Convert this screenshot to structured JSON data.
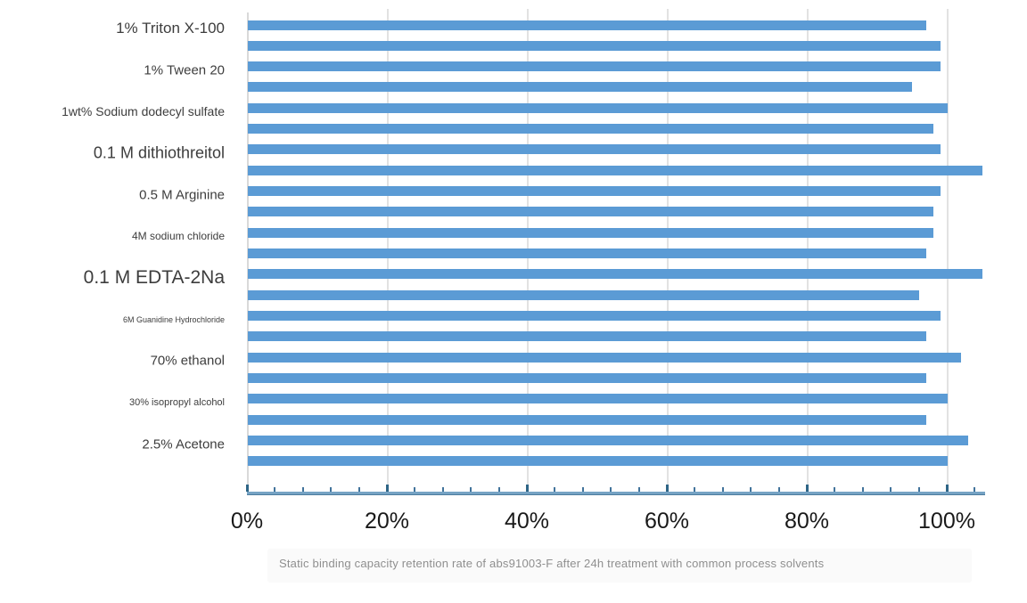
{
  "chart_data": {
    "type": "bar",
    "orientation": "horizontal",
    "title": "",
    "caption": "Static binding capacity retention rate of abs91003-F after 24h treatment with common process solvents",
    "categories": [
      "1% Triton X-100",
      "1% Tween 20",
      "1wt% Sodium dodecyl sulfate",
      "0.1 M dithiothreitol",
      "0.5 M Arginine",
      "4M sodium chloride",
      "0.1 M EDTA-2Na",
      "6M Guanidine Hydrochloride",
      "70% ethanol",
      "30% isopropyl alcohol",
      "2.5% Acetone"
    ],
    "series": [
      {
        "values": [
          97,
          99,
          100,
          99,
          99,
          98,
          105,
          99,
          102,
          100,
          103
        ]
      },
      {
        "values": [
          99,
          95,
          98,
          105,
          98,
          97,
          96,
          97,
          97,
          97,
          100
        ]
      }
    ],
    "xlabel": "",
    "ylabel": "",
    "x_axis": {
      "tick_labels": [
        "0%",
        "20%",
        "40%",
        "60%",
        "80%",
        "100%"
      ],
      "major_step_pct": 20,
      "minor_step_pct": 4,
      "range_pct": [
        0,
        105.5
      ]
    },
    "legend": "none",
    "grid": "vertical-majors",
    "layout_hints": {
      "label_font_sizes_px": [
        17,
        15,
        14,
        18,
        15,
        12,
        21,
        9,
        15,
        11,
        15
      ]
    },
    "colors": {
      "bar": "#5b9bd5",
      "gridline": "#e2e2e2",
      "axis_line": "#76a3c4",
      "tick": "#2e6586",
      "category_text": "#3d3d3d",
      "tick_label_text": "#191919",
      "caption_text": "#8f8f8f",
      "caption_bg": "#fafafa"
    }
  }
}
